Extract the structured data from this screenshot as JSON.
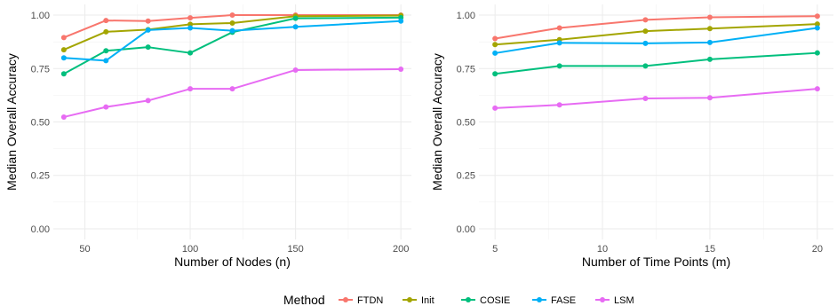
{
  "legend": {
    "title": "Method",
    "placement": "bottom",
    "entries": [
      {
        "name": "FTDN",
        "color": "#F8766D"
      },
      {
        "name": "Init",
        "color": "#A3A500"
      },
      {
        "name": "COSIE",
        "color": "#00BF7D"
      },
      {
        "name": "FASE",
        "color": "#00B0F6"
      },
      {
        "name": "LSM",
        "color": "#E76BF3"
      }
    ]
  },
  "chart_data": [
    {
      "type": "line",
      "xlabel": "Number of Nodes (n)",
      "ylabel": "Median Overall Accuracy",
      "x": [
        40,
        60,
        80,
        100,
        120,
        150,
        200
      ],
      "xlim": [
        35,
        205
      ],
      "ylim": [
        0,
        1
      ],
      "xticks": [
        50,
        100,
        150,
        200
      ],
      "xtick_labels": [
        "50",
        "100",
        "150",
        "200"
      ],
      "yticks": [
        0,
        0.25,
        0.5,
        0.75,
        1
      ],
      "ytick_labels": [
        "0.00",
        "0.25",
        "0.50",
        "0.75",
        "1.00"
      ],
      "grid": true,
      "series": [
        {
          "name": "FTDN",
          "color": "#F8766D",
          "values": [
            0.895,
            0.975,
            0.972,
            0.987,
            1.0,
            1.0,
            1.0
          ]
        },
        {
          "name": "Init",
          "color": "#A3A500",
          "values": [
            0.838,
            0.922,
            0.932,
            0.957,
            0.963,
            0.995,
            0.998
          ]
        },
        {
          "name": "COSIE",
          "color": "#00BF7D",
          "values": [
            0.725,
            0.833,
            0.85,
            0.823,
            0.92,
            0.985,
            0.988
          ]
        },
        {
          "name": "FASE",
          "color": "#00B0F6",
          "values": [
            0.8,
            0.787,
            0.93,
            0.94,
            0.927,
            0.945,
            0.972
          ]
        },
        {
          "name": "LSM",
          "color": "#E76BF3",
          "values": [
            0.523,
            0.57,
            0.6,
            0.655,
            0.655,
            0.743,
            0.747
          ]
        }
      ]
    },
    {
      "type": "line",
      "xlabel": "Number of Time Points (m)",
      "ylabel": "Median Overall Accuracy",
      "x": [
        5,
        8,
        12,
        15,
        20
      ],
      "xlim": [
        4.25,
        20.75
      ],
      "ylim": [
        0,
        1
      ],
      "xticks": [
        5,
        10,
        15,
        20
      ],
      "xtick_labels": [
        "5",
        "10",
        "15",
        "20"
      ],
      "yticks": [
        0,
        0.25,
        0.5,
        0.75,
        1
      ],
      "ytick_labels": [
        "0.00",
        "0.25",
        "0.50",
        "0.75",
        "1.00"
      ],
      "grid": true,
      "series": [
        {
          "name": "FTDN",
          "color": "#F8766D",
          "values": [
            0.89,
            0.94,
            0.978,
            0.99,
            0.995
          ]
        },
        {
          "name": "Init",
          "color": "#A3A500",
          "values": [
            0.862,
            0.885,
            0.925,
            0.937,
            0.958
          ]
        },
        {
          "name": "COSIE",
          "color": "#00BF7D",
          "values": [
            0.725,
            0.762,
            0.762,
            0.793,
            0.823
          ]
        },
        {
          "name": "FASE",
          "color": "#00B0F6",
          "values": [
            0.822,
            0.87,
            0.868,
            0.872,
            0.94
          ]
        },
        {
          "name": "LSM",
          "color": "#E76BF3",
          "values": [
            0.565,
            0.58,
            0.61,
            0.613,
            0.655
          ]
        }
      ]
    }
  ]
}
